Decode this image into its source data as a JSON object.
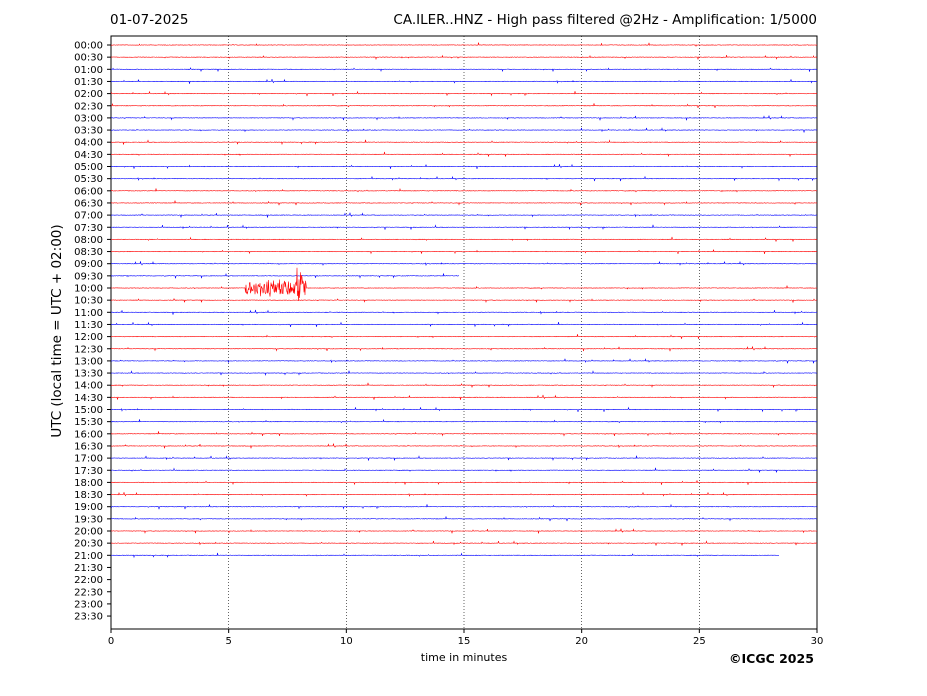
{
  "header": {
    "date": "01-07-2025",
    "title": "CA.ILER..HNZ - High pass filtered @2Hz - Amplification: 1/5000"
  },
  "footer": {
    "copyright": "©ICGC 2025"
  },
  "chart_data": {
    "type": "line",
    "title": "CA.ILER..HNZ - High pass filtered @2Hz - Amplification: 1/5000",
    "xlabel": "time in minutes",
    "ylabel": "UTC (local time = UTC + 02:00)",
    "xlim": [
      0,
      30
    ],
    "x_ticks": [
      "0",
      "5",
      "10",
      "15",
      "20",
      "25",
      "30"
    ],
    "vertical_grid_minutes": [
      5,
      10,
      15,
      20,
      25
    ],
    "grid_style": "dotted vertical lines",
    "rows": [
      "00:00",
      "00:30",
      "01:00",
      "01:30",
      "02:00",
      "02:30",
      "03:00",
      "03:30",
      "04:00",
      "04:30",
      "05:00",
      "05:30",
      "06:00",
      "06:30",
      "07:00",
      "07:30",
      "08:00",
      "08:30",
      "09:00",
      "09:30",
      "10:00",
      "10:30",
      "11:00",
      "11:30",
      "12:00",
      "12:30",
      "13:00",
      "13:30",
      "14:00",
      "14:30",
      "15:00",
      "15:30",
      "16:00",
      "16:30",
      "17:00",
      "17:30",
      "18:00",
      "18:30",
      "19:00",
      "19:30",
      "20:00",
      "20:30",
      "21:00",
      "21:30",
      "22:00",
      "22:30",
      "23:00",
      "23:30"
    ],
    "trace_colors": [
      "#ff0000",
      "#0000ff"
    ],
    "trace_color_rule": "alternating red/blue per hour, starting red at 00:00",
    "trace_end_minutes": {
      "09:30": 14.8,
      "21:00": 28.4
    },
    "empty_rows": [
      "21:30",
      "22:00",
      "22:30",
      "23:00",
      "23:30"
    ],
    "events": [
      {
        "row": "10:00",
        "start_minute": 5.7,
        "end_minute": 8.3,
        "color": "#ff0000",
        "peak_minute": 8.0
      }
    ]
  }
}
